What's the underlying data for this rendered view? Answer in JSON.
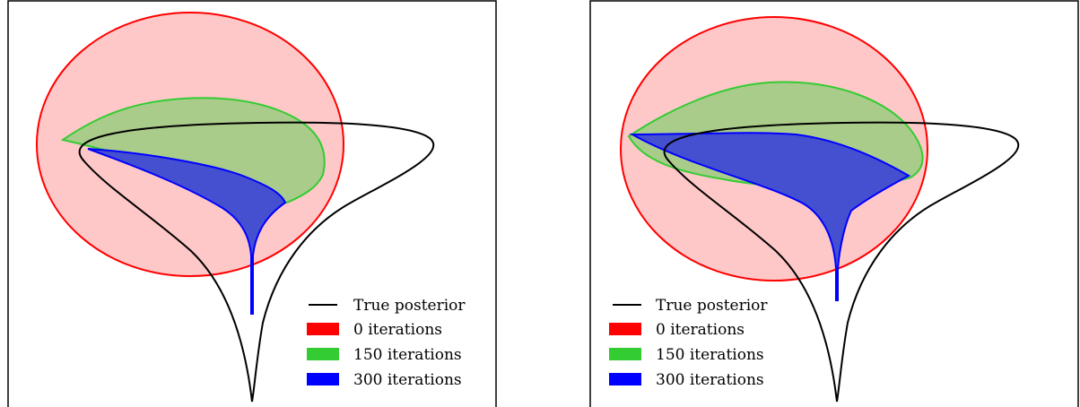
{
  "legend": {
    "items": [
      {
        "label": "True posterior",
        "color": "#000000",
        "kind": "line"
      },
      {
        "label": "0 iterations",
        "color": "#ff0000",
        "kind": "patch"
      },
      {
        "label": "150 iterations",
        "color": "#33cc33",
        "kind": "patch"
      },
      {
        "label": "300 iterations",
        "color": "#0000ff",
        "kind": "patch"
      }
    ]
  },
  "colors": {
    "true_posterior": "#000000",
    "iter_0_edge": "#ff0000",
    "iter_0_fill": "#ffc8c8",
    "iter_150_edge": "#33cc33",
    "iter_150_fill": "#a9cc8a",
    "iter_300_edge": "#0000ff",
    "iter_300_fill": "#4450d0"
  }
}
